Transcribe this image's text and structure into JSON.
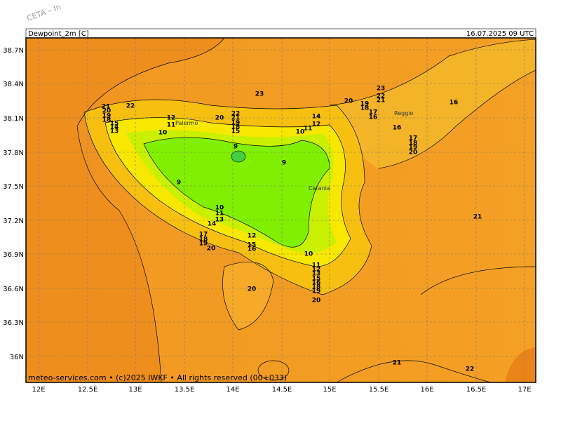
{
  "watermark": "CETA – In",
  "header": {
    "variable": "Dewpoint_2m [C]",
    "time": "16.07.2025 09 UTC"
  },
  "axes": {
    "lat": [
      "38.7N",
      "38.4N",
      "38.1N",
      "37.8N",
      "37.5N",
      "37.2N",
      "36.9N",
      "36.6N",
      "36.3N",
      "36N"
    ],
    "lon": [
      "12E",
      "12.5E",
      "13E",
      "13.5E",
      "14E",
      "14.5E",
      "15E",
      "15.5E",
      "16E",
      "16.5E",
      "17E"
    ]
  },
  "places": [
    "Palermo",
    "Reggio",
    "Catania"
  ],
  "contour_labels": [
    21,
    20,
    19,
    18,
    15,
    14,
    13,
    22,
    12,
    11,
    10,
    20,
    22,
    21,
    19,
    18,
    15,
    23,
    9,
    9,
    9,
    14,
    12,
    11,
    10,
    20,
    19,
    18,
    23,
    22,
    21,
    17,
    16,
    16,
    16,
    17,
    18,
    19,
    20,
    10,
    11,
    13,
    14,
    17,
    18,
    19,
    20,
    12,
    15,
    16,
    10,
    11,
    12,
    13,
    15,
    16,
    18,
    19,
    20,
    20,
    21,
    21,
    22
  ],
  "footer": "meteo-services.com • (c)2025 IWKF • All rights reserved (00+033)"
}
